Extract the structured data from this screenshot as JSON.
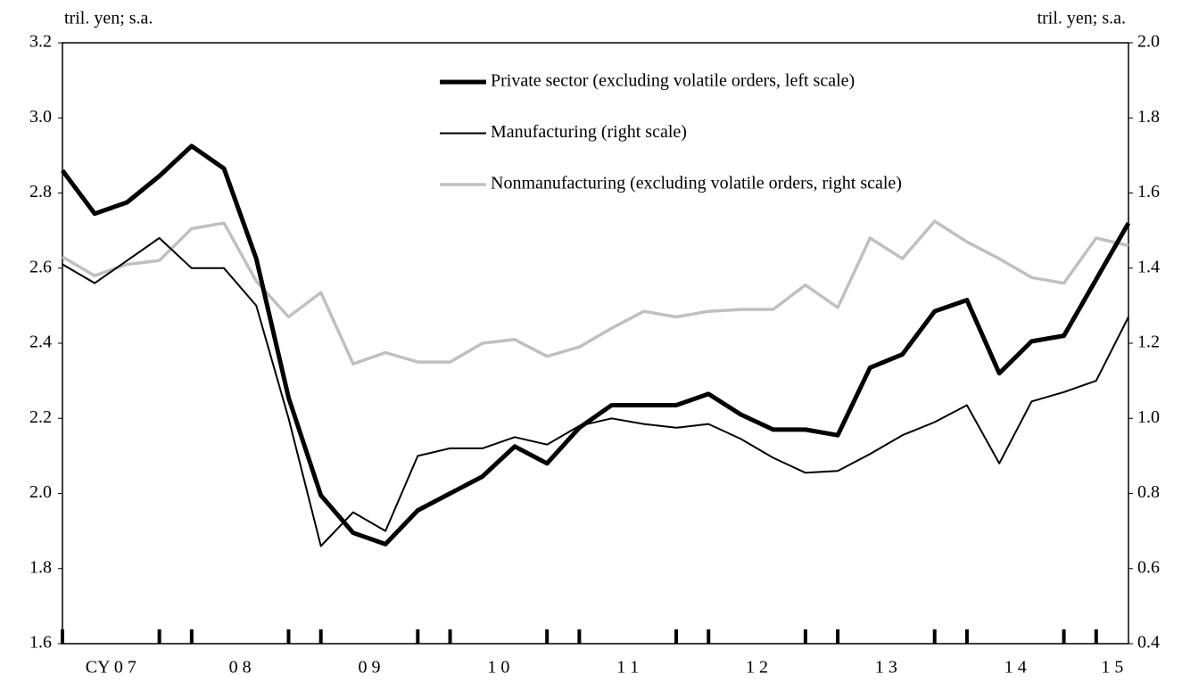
{
  "chart_data": {
    "type": "line",
    "ylabel": "tril. yen; s.a.",
    "y2label": "tril. yen; s.a.",
    "categories": [
      null,
      "CY 0 7",
      null,
      null,
      null,
      "0 8",
      null,
      null,
      null,
      "0 9",
      null,
      null,
      null,
      "1 0",
      null,
      null,
      null,
      "1 1",
      null,
      null,
      null,
      "1 2",
      null,
      null,
      null,
      "1 3",
      null,
      null,
      null,
      "1 4",
      null,
      null,
      "1 5",
      null
    ],
    "ylim": [
      1.6,
      3.2
    ],
    "yticks": [
      1.6,
      1.8,
      {
        "value": 2,
        "label": "2.0"
      },
      2.2,
      2.4,
      2.6,
      2.8,
      {
        "value": 3,
        "label": "3.0"
      },
      3.2
    ],
    "y2lim": [
      0.4,
      2.0
    ],
    "y2ticks": [
      0.4,
      0.6,
      0.8,
      {
        "value": 1,
        "label": "1.0"
      },
      1.2,
      1.4,
      1.6,
      1.8,
      {
        "value": 2,
        "label": "2.0"
      }
    ],
    "series": [
      {
        "name": "Private sector (excluding volatile orders, left scale)",
        "color": "#000000",
        "width": 5,
        "values": [
          2.86,
          2.745,
          2.775,
          2.845,
          2.925,
          2.865,
          2.625,
          2.255,
          1.995,
          1.895,
          1.865,
          1.955,
          2.0,
          2.045,
          2.125,
          2.08,
          2.175,
          2.235,
          2.235,
          2.235,
          2.265,
          2.21,
          2.17,
          2.17,
          2.155,
          2.335,
          2.37,
          2.485,
          2.515,
          2.32,
          2.405,
          2.42,
          2.57,
          2.72
        ]
      },
      {
        "name": "Manufacturing (right scale)",
        "color": "#000000",
        "width": 2,
        "axis": "y2",
        "values": [
          1.41,
          1.36,
          1.42,
          1.48,
          1.4,
          1.4,
          1.3,
          1.0,
          0.66,
          0.75,
          0.7,
          0.9,
          0.92,
          0.92,
          0.95,
          0.93,
          0.98,
          1.0,
          0.985,
          0.975,
          0.985,
          0.945,
          0.895,
          0.855,
          0.86,
          0.905,
          0.955,
          0.99,
          1.035,
          0.88,
          1.045,
          1.07,
          1.1,
          1.27
        ]
      },
      {
        "name": "Nonmanufacturing (excluding volatile orders, right scale)",
        "color": "#c0c0c0",
        "width": 3.5,
        "axis": "y2",
        "values": [
          1.43,
          1.38,
          1.41,
          1.42,
          1.505,
          1.52,
          1.365,
          1.27,
          1.335,
          1.145,
          1.175,
          1.15,
          1.15,
          1.2,
          1.21,
          1.165,
          1.19,
          1.24,
          1.285,
          1.27,
          1.285,
          1.29,
          1.29,
          1.355,
          1.295,
          1.48,
          1.425,
          1.525,
          1.47,
          1.425,
          1.375,
          1.36,
          1.48,
          1.46
        ]
      }
    ]
  }
}
